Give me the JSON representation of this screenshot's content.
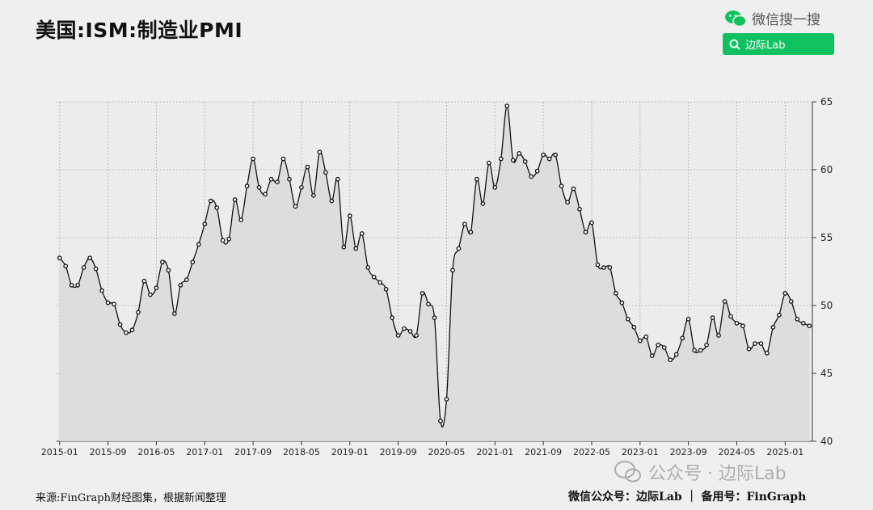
{
  "title": "美国:ISM:制造业PMI",
  "wechat": {
    "search_text": "微信搜一搜",
    "search_box_label": "边际Lab",
    "brand_color": "#10c160"
  },
  "footer": {
    "source": "来源:FinGraph财经图集，根据新闻整理",
    "right": "微信公众号：边际Lab ｜ 备用号：FinGraph"
  },
  "watermark": "公众号 · 边际Lab",
  "chart_data": {
    "type": "line",
    "title": "美国:ISM:制造业PMI",
    "ylim": [
      40,
      65
    ],
    "yticks": [
      40,
      45,
      50,
      55,
      60,
      65
    ],
    "y_axis_position": "right",
    "grid": true,
    "xticks": [
      "2015-01",
      "2015-09",
      "2016-05",
      "2017-01",
      "2017-09",
      "2018-05",
      "2019-01",
      "2019-09",
      "2020-05",
      "2021-01",
      "2021-09",
      "2022-05",
      "2023-01",
      "2023-09",
      "2024-05",
      "2025-01"
    ],
    "start_month": "2015-01",
    "series": [
      {
        "values": [
          53.5,
          52.9,
          51.5,
          51.5,
          52.8,
          53.5,
          52.7,
          51.1,
          50.2,
          50.1,
          48.6,
          48.0,
          48.2,
          49.5,
          51.8,
          50.8,
          51.3,
          53.2,
          52.6,
          49.4,
          51.5,
          51.9,
          53.2,
          54.5,
          56.0,
          57.7,
          57.2,
          54.8,
          54.9,
          57.8,
          56.3,
          58.8,
          60.8,
          58.7,
          58.2,
          59.3,
          59.1,
          60.8,
          59.3,
          57.3,
          58.7,
          60.2,
          58.1,
          61.3,
          59.8,
          57.7,
          59.3,
          54.3,
          56.6,
          54.2,
          55.3,
          52.8,
          52.1,
          51.7,
          51.2,
          49.1,
          47.8,
          48.3,
          48.1,
          47.8,
          50.9,
          50.1,
          49.1,
          41.5,
          43.1,
          52.6,
          54.2,
          56.0,
          55.4,
          59.3,
          57.5,
          60.5,
          58.7,
          60.8,
          64.7,
          60.7,
          61.2,
          60.6,
          59.5,
          59.9,
          61.1,
          60.8,
          61.1,
          58.8,
          57.6,
          58.6,
          57.1,
          55.4,
          56.1,
          53.0,
          52.8,
          52.8,
          50.9,
          50.2,
          49.0,
          48.4,
          47.4,
          47.7,
          46.3,
          47.1,
          46.9,
          46.0,
          46.4,
          47.6,
          49.0,
          46.7,
          46.7,
          47.1,
          49.1,
          47.8,
          50.3,
          49.2,
          48.7,
          48.5,
          46.8,
          47.2,
          47.2,
          46.5,
          48.4,
          49.3,
          50.9,
          50.3,
          49.0,
          48.7,
          48.5
        ],
        "color": "#111111",
        "fill": "#dcdcdc"
      }
    ]
  }
}
